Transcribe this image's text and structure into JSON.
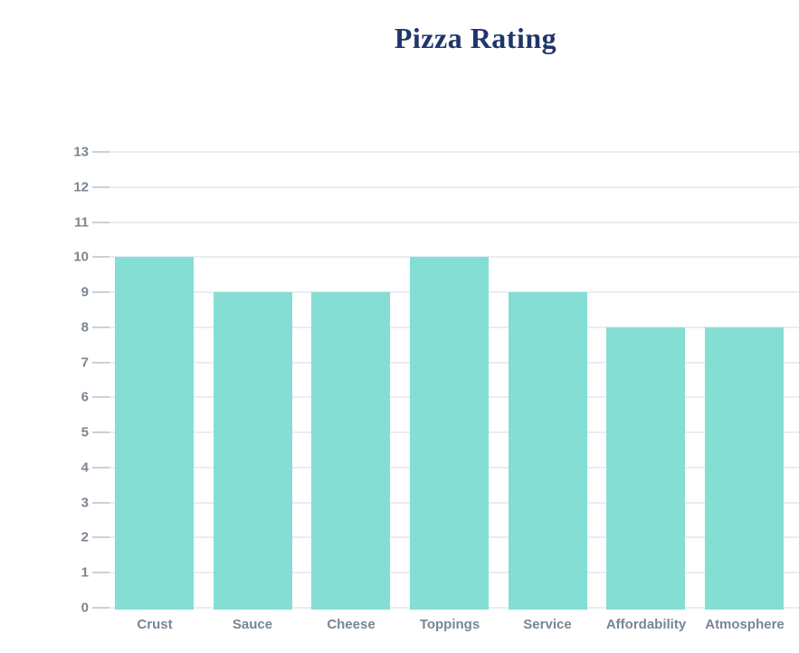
{
  "page": {
    "background": "#ffffff"
  },
  "chart_data": {
    "type": "bar",
    "title": "Pizza Rating",
    "categories": [
      "Crust",
      "Sauce",
      "Cheese",
      "Toppings",
      "Service",
      "Affordability",
      "Atmosphere"
    ],
    "values": [
      10,
      9,
      9,
      10,
      9,
      8,
      8
    ],
    "xlabel": "",
    "ylabel": "",
    "ylim": [
      0,
      13
    ],
    "ytick_step": 1,
    "grid": true,
    "legend": "none",
    "colors": {
      "bar": "#84ded3",
      "title": "#20366a",
      "axis_label": "#7a8591",
      "gridline": "#e8eef3",
      "tick": "#c9d1d9"
    }
  }
}
